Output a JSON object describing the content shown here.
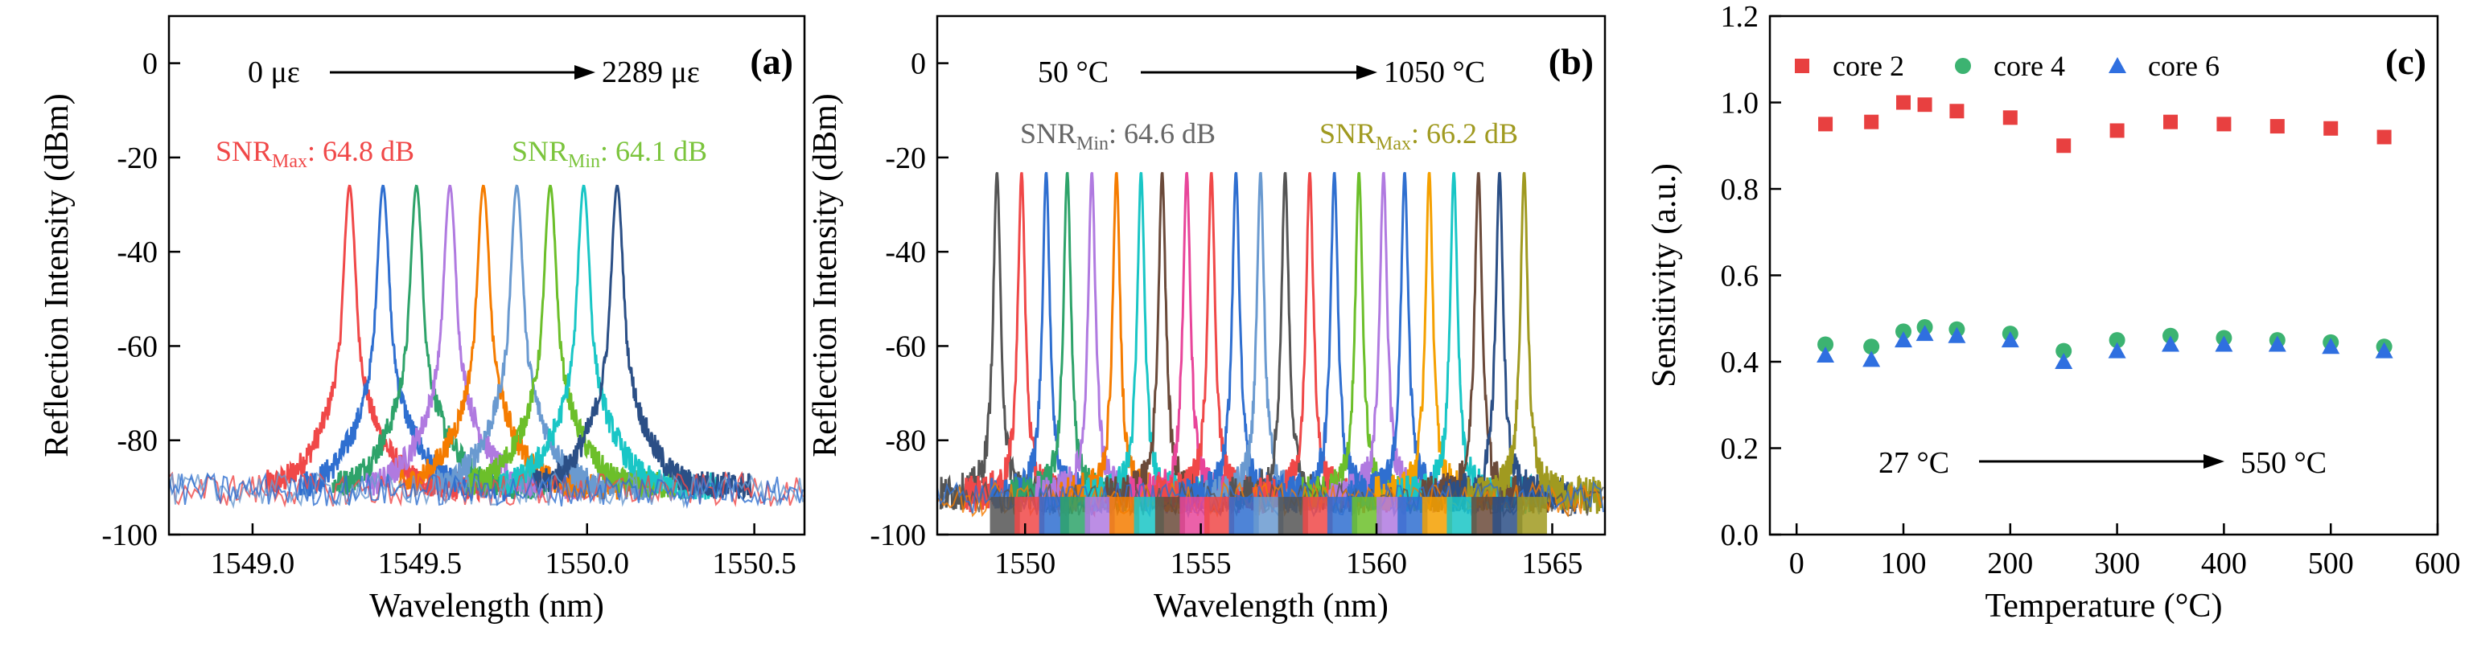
{
  "chart_data": [
    {
      "panel": "(a)",
      "type": "line",
      "xlabel": "Wavelength (nm)",
      "ylabel": "Reflection Intensity (dBm)",
      "xlim": [
        1548.75,
        1550.65
      ],
      "ylim": [
        -100,
        10
      ],
      "x_ticks": [
        1549.0,
        1549.5,
        1550.0,
        1550.5
      ],
      "x_tick_labels": [
        "1549.0",
        "1549.5",
        "1550.0",
        "1550.5"
      ],
      "y_ticks": [
        0,
        -20,
        -40,
        -60,
        -80,
        -100
      ],
      "y_tick_labels": [
        "0",
        "-20",
        "-40",
        "-60",
        "-80",
        "-100"
      ],
      "annotations": {
        "range_start": "0 με",
        "range_end": "2289 με",
        "snr_left": {
          "prefix": "SNR",
          "sub": "Max",
          "suffix": ": 64.8 dB",
          "color": "#f04848"
        },
        "snr_right": {
          "prefix": "SNR",
          "sub": "Min",
          "suffix": ": 64.1 dB",
          "color": "#7bc43c"
        }
      },
      "noise_floor": -90,
      "peak_level": -26,
      "peaks": [
        {
          "center": 1549.29,
          "color": "#f04848"
        },
        {
          "center": 1549.39,
          "color": "#2f6fd0"
        },
        {
          "center": 1549.49,
          "color": "#2ea36a"
        },
        {
          "center": 1549.59,
          "color": "#b07ae0"
        },
        {
          "center": 1549.69,
          "color": "#f57c00"
        },
        {
          "center": 1549.79,
          "color": "#6a9ad0"
        },
        {
          "center": 1549.89,
          "color": "#6cbf2a"
        },
        {
          "center": 1549.99,
          "color": "#19c6c6"
        },
        {
          "center": 1550.09,
          "color": "#2b4f86"
        }
      ]
    },
    {
      "panel": "(b)",
      "type": "line",
      "xlabel": "Wavelength (nm)",
      "ylabel": "Reflection Intensity (dBm)",
      "xlim": [
        1547.5,
        1566.5
      ],
      "ylim": [
        -100,
        10
      ],
      "x_ticks": [
        1550,
        1555,
        1560,
        1565
      ],
      "x_tick_labels": [
        "1550",
        "1555",
        "1560",
        "1565"
      ],
      "y_ticks": [
        0,
        -20,
        -40,
        -60,
        -80,
        -100
      ],
      "y_tick_labels": [
        "0",
        "-20",
        "-40",
        "-60",
        "-80",
        "-100"
      ],
      "annotations": {
        "range_start": "50 °C",
        "range_end": "1050 °C",
        "snr_left": {
          "prefix": "SNR",
          "sub": "Min",
          "suffix": ": 64.6 dB",
          "color": "#666666"
        },
        "snr_right": {
          "prefix": "SNR",
          "sub": "Max",
          "suffix": ": 66.2 dB",
          "color": "#a09a20"
        }
      },
      "noise_floor": -92,
      "peak_level": -23,
      "peaks": [
        {
          "center": 1549.2,
          "color": "#555555"
        },
        {
          "center": 1549.9,
          "color": "#f04848"
        },
        {
          "center": 1550.6,
          "color": "#2f6fd0"
        },
        {
          "center": 1551.2,
          "color": "#2ea36a"
        },
        {
          "center": 1551.9,
          "color": "#b07ae0"
        },
        {
          "center": 1552.6,
          "color": "#f57c00"
        },
        {
          "center": 1553.3,
          "color": "#19c6c6"
        },
        {
          "center": 1553.9,
          "color": "#6b4a3a"
        },
        {
          "center": 1554.6,
          "color": "#e8459a"
        },
        {
          "center": 1555.3,
          "color": "#f04848"
        },
        {
          "center": 1556.0,
          "color": "#2f6fd0"
        },
        {
          "center": 1556.7,
          "color": "#6a9ad0"
        },
        {
          "center": 1557.4,
          "color": "#555555"
        },
        {
          "center": 1558.1,
          "color": "#f04848"
        },
        {
          "center": 1558.8,
          "color": "#2f6fd0"
        },
        {
          "center": 1559.5,
          "color": "#6cbf2a"
        },
        {
          "center": 1560.2,
          "color": "#b07ae0"
        },
        {
          "center": 1560.8,
          "color": "#2f6fd0"
        },
        {
          "center": 1561.5,
          "color": "#f5a000"
        },
        {
          "center": 1562.2,
          "color": "#19c6c6"
        },
        {
          "center": 1562.9,
          "color": "#6b4a3a"
        },
        {
          "center": 1563.5,
          "color": "#2b4f86"
        },
        {
          "center": 1564.2,
          "color": "#a09a20"
        }
      ]
    },
    {
      "panel": "(c)",
      "type": "scatter",
      "xlabel": "Temperature (°C)",
      "ylabel": "Sensitivity (a.u.)",
      "xlim": [
        -25,
        600
      ],
      "ylim": [
        0,
        1.2
      ],
      "x_ticks": [
        0,
        100,
        200,
        300,
        400,
        500,
        600
      ],
      "x_tick_labels": [
        "0",
        "100",
        "200",
        "300",
        "400",
        "500",
        "600"
      ],
      "y_ticks": [
        0.0,
        0.2,
        0.4,
        0.6,
        0.8,
        1.0,
        1.2
      ],
      "y_tick_labels": [
        "0.0",
        "0.2",
        "0.4",
        "0.6",
        "0.8",
        "1.0",
        "1.2"
      ],
      "legend_position": "top",
      "annotations": {
        "range_start": "27 °C",
        "range_end": "550 °C"
      },
      "x": [
        27,
        70,
        100,
        120,
        150,
        200,
        250,
        300,
        350,
        400,
        450,
        500,
        550
      ],
      "series": [
        {
          "name": "core 2",
          "marker": "square",
          "color": "#e84040",
          "values": [
            0.95,
            0.955,
            1.0,
            0.995,
            0.98,
            0.965,
            0.9,
            0.935,
            0.955,
            0.95,
            0.945,
            0.94,
            0.92
          ]
        },
        {
          "name": "core 4",
          "marker": "circle",
          "color": "#3cb371",
          "values": [
            0.44,
            0.435,
            0.47,
            0.48,
            0.475,
            0.465,
            0.425,
            0.45,
            0.46,
            0.455,
            0.45,
            0.445,
            0.435
          ]
        },
        {
          "name": "core 6",
          "marker": "triangle",
          "color": "#2f6fe0",
          "values": [
            0.415,
            0.405,
            0.45,
            0.465,
            0.46,
            0.45,
            0.4,
            0.425,
            0.44,
            0.44,
            0.44,
            0.435,
            0.425
          ]
        }
      ]
    }
  ]
}
